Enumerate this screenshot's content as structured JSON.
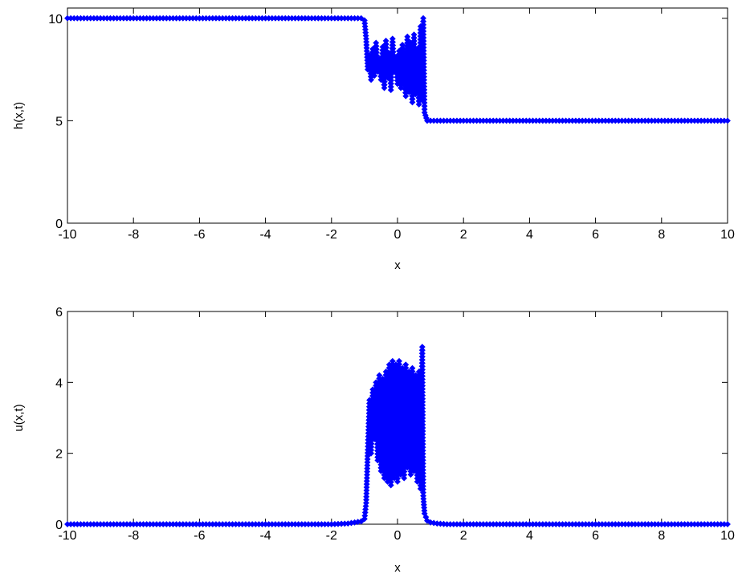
{
  "chart_data": [
    {
      "type": "line",
      "title": "",
      "xlabel": "x",
      "ylabel": "h(x,t)",
      "xlim": [
        -10,
        10
      ],
      "ylim": [
        0,
        10.5
      ],
      "xticks": [
        "-10",
        "-8",
        "-6",
        "-4",
        "-2",
        "0",
        "2",
        "4",
        "6",
        "8",
        "10"
      ],
      "yticks": [
        "0",
        "5",
        "10"
      ],
      "yticks_values": [
        0,
        5,
        10
      ],
      "grid": false,
      "color": "#0000ff",
      "marker": "diamond",
      "series": [
        {
          "x": [
            -10,
            -9,
            -8,
            -7,
            -6,
            -5,
            -4,
            -3,
            -2,
            -1.5,
            -1.1,
            -1.0,
            -0.95,
            -0.9,
            -0.85,
            -0.8,
            -0.75,
            -0.7,
            -0.65,
            -0.6,
            -0.55,
            -0.5,
            -0.45,
            -0.4,
            -0.35,
            -0.3,
            -0.25,
            -0.2,
            -0.15,
            -0.1,
            -0.05,
            0.0,
            0.05,
            0.1,
            0.15,
            0.2,
            0.25,
            0.3,
            0.35,
            0.4,
            0.45,
            0.5,
            0.55,
            0.6,
            0.65,
            0.7,
            0.75,
            0.78,
            0.82,
            0.9,
            1.0,
            1.5,
            2,
            3,
            4,
            5,
            6,
            7,
            8,
            9,
            10
          ],
          "y": [
            10,
            10,
            10,
            10,
            10,
            10,
            10,
            10,
            10,
            10,
            10,
            9.9,
            9.0,
            7.5,
            8.2,
            7.0,
            8.5,
            7.2,
            8.8,
            7.4,
            8.0,
            7.0,
            8.6,
            6.6,
            8.9,
            7.1,
            8.3,
            6.5,
            9.0,
            7.4,
            8.1,
            6.8,
            8.4,
            6.6,
            8.7,
            7.2,
            6.2,
            9.1,
            6.4,
            8.8,
            5.9,
            9.2,
            6.3,
            8.5,
            5.8,
            9.6,
            6.0,
            10.0,
            5.4,
            5.0,
            5.0,
            5.0,
            5.0,
            5.0,
            5.0,
            5.0,
            5.0,
            5.0,
            5.0,
            5.0,
            5.0
          ]
        }
      ]
    },
    {
      "type": "line",
      "title": "",
      "xlabel": "x",
      "ylabel": "u(x,t)",
      "xlim": [
        -10,
        10
      ],
      "ylim": [
        0,
        6
      ],
      "xticks": [
        "-10",
        "-8",
        "-6",
        "-4",
        "-2",
        "0",
        "2",
        "4",
        "6",
        "8",
        "10"
      ],
      "yticks": [
        "0",
        "2",
        "4",
        "6"
      ],
      "yticks_values": [
        0,
        2,
        4,
        6
      ],
      "grid": false,
      "color": "#0000ff",
      "marker": "diamond",
      "series": [
        {
          "x": [
            -10,
            -9,
            -8,
            -7,
            -6,
            -5,
            -4,
            -3,
            -2,
            -1.5,
            -1.3,
            -1.1,
            -1.0,
            -0.95,
            -0.9,
            -0.85,
            -0.8,
            -0.75,
            -0.7,
            -0.65,
            -0.6,
            -0.55,
            -0.5,
            -0.45,
            -0.4,
            -0.35,
            -0.3,
            -0.25,
            -0.2,
            -0.15,
            -0.1,
            -0.05,
            0.0,
            0.05,
            0.1,
            0.15,
            0.2,
            0.25,
            0.3,
            0.35,
            0.4,
            0.45,
            0.5,
            0.55,
            0.6,
            0.65,
            0.7,
            0.75,
            0.78,
            0.82,
            0.9,
            1.0,
            1.2,
            1.5,
            2,
            3,
            4,
            5,
            6,
            7,
            8,
            9,
            10
          ],
          "y": [
            0,
            0,
            0,
            0,
            0,
            0,
            0,
            0,
            0,
            0.02,
            0.05,
            0.08,
            0.15,
            0.6,
            2.1,
            3.5,
            2.0,
            3.8,
            2.4,
            4.0,
            1.8,
            4.2,
            1.5,
            4.1,
            1.3,
            4.3,
            1.2,
            4.5,
            1.1,
            4.6,
            1.3,
            4.5,
            1.2,
            4.6,
            1.4,
            4.4,
            1.3,
            4.5,
            1.6,
            4.3,
            1.4,
            4.4,
            1.5,
            4.2,
            1.2,
            4.3,
            1.0,
            5.0,
            0.8,
            0.3,
            0.1,
            0.05,
            0.02,
            0,
            0,
            0,
            0,
            0,
            0,
            0,
            0,
            0,
            0
          ]
        }
      ]
    }
  ]
}
